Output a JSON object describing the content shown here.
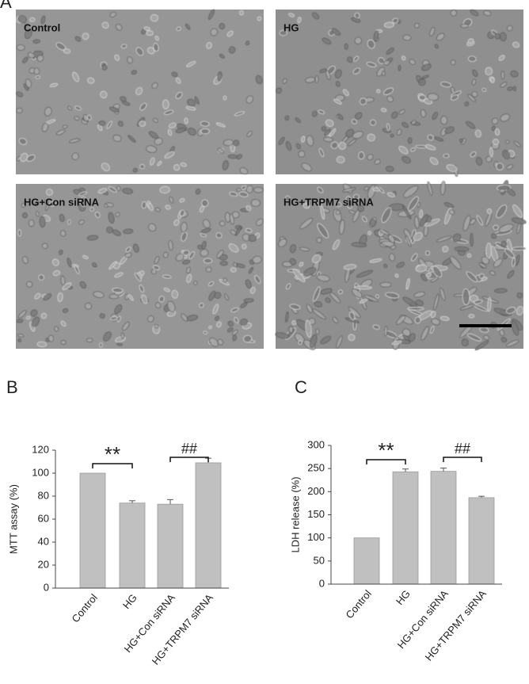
{
  "panel_a": {
    "label": "A",
    "images": [
      "Control",
      "HG",
      "HG+Con siRNA",
      "HG+TRPM7 siRNA"
    ]
  },
  "chart_data": [
    {
      "type": "bar",
      "panel_label": "B",
      "ylabel": "MTT assay (%)",
      "categories": [
        "Control",
        "HG",
        "HG+Con siRNA",
        "HG+TRPM7 siRNA"
      ],
      "values": [
        100,
        74,
        73,
        109
      ],
      "errors": [
        0,
        2,
        4,
        4
      ],
      "color": "#c0c0c0",
      "ylim": [
        0,
        120
      ],
      "yticks": [
        0,
        20,
        40,
        60,
        80,
        100,
        120
      ],
      "annotations": [
        "**",
        "##"
      ]
    },
    {
      "type": "bar",
      "panel_label": "C",
      "ylabel": "LDH release (%)",
      "categories": [
        "Control",
        "HG",
        "HG+Con siRNA",
        "HG+TRPM7 siRNA"
      ],
      "values": [
        100,
        243,
        244,
        187
      ],
      "errors": [
        0,
        6,
        7,
        3
      ],
      "color": "#c0c0c0",
      "ylim": [
        0,
        300
      ],
      "yticks": [
        0,
        50,
        100,
        150,
        200,
        250,
        300
      ],
      "annotations": [
        "**",
        "##"
      ]
    }
  ]
}
